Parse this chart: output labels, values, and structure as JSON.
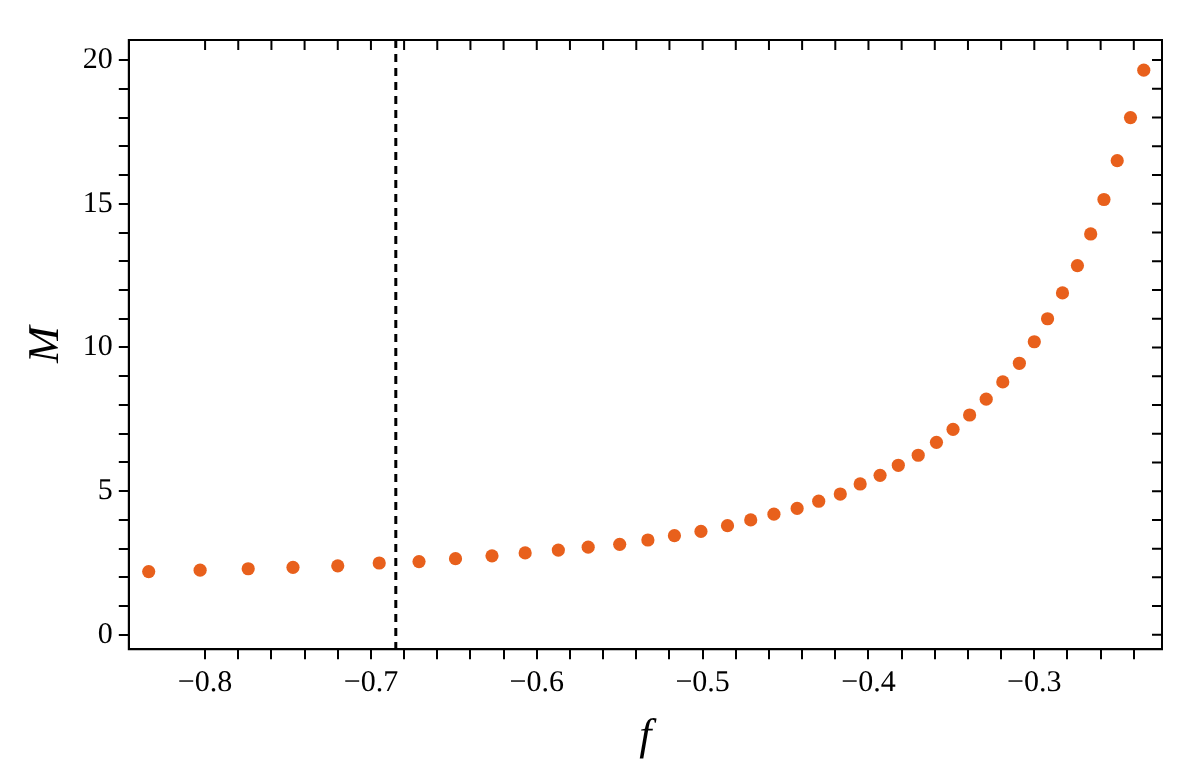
{
  "chart_data": {
    "type": "scatter",
    "xlabel": "f",
    "ylabel": "M",
    "marker": "circle",
    "grid": false,
    "legend": false,
    "xlim": [
      -0.846,
      -0.223
    ],
    "ylim": [
      -0.5,
      20.7
    ],
    "xticks": [
      -0.8,
      {
        "value": -0.78,
        "label": null
      },
      {
        "value": -0.76,
        "label": null
      },
      {
        "value": -0.74,
        "label": null
      },
      {
        "value": -0.72,
        "label": null
      },
      -0.7,
      {
        "value": -0.68,
        "label": null
      },
      {
        "value": -0.66,
        "label": null
      },
      {
        "value": -0.64,
        "label": null
      },
      {
        "value": -0.62,
        "label": null
      },
      -0.6,
      {
        "value": -0.58,
        "label": null
      },
      {
        "value": -0.56,
        "label": null
      },
      {
        "value": -0.54,
        "label": null
      },
      {
        "value": -0.52,
        "label": null
      },
      -0.5,
      {
        "value": -0.48,
        "label": null
      },
      {
        "value": -0.46,
        "label": null
      },
      {
        "value": -0.44,
        "label": null
      },
      {
        "value": -0.42,
        "label": null
      },
      -0.4,
      {
        "value": -0.38,
        "label": null
      },
      {
        "value": -0.36,
        "label": null
      },
      {
        "value": -0.34,
        "label": null
      },
      {
        "value": -0.32,
        "label": null
      },
      -0.3,
      {
        "value": -0.28,
        "label": null
      },
      {
        "value": -0.26,
        "label": null
      },
      {
        "value": -0.24,
        "label": null
      }
    ],
    "yticks": [
      0,
      {
        "value": 1,
        "label": null
      },
      {
        "value": 2,
        "label": null
      },
      {
        "value": 3,
        "label": null
      },
      {
        "value": 4,
        "label": null
      },
      5,
      {
        "value": 6,
        "label": null
      },
      {
        "value": 7,
        "label": null
      },
      {
        "value": 8,
        "label": null
      },
      {
        "value": 9,
        "label": null
      },
      10,
      {
        "value": 11,
        "label": null
      },
      {
        "value": 12,
        "label": null
      },
      {
        "value": 13,
        "label": null
      },
      {
        "value": 14,
        "label": null
      },
      15,
      {
        "value": 16,
        "label": null
      },
      {
        "value": 17,
        "label": null
      },
      {
        "value": 18,
        "label": null
      },
      {
        "value": 19,
        "label": null
      },
      20
    ],
    "ref_lines": [
      {
        "axis": "x",
        "value": -0.685,
        "color": "#000000",
        "line_style": "dashed"
      }
    ],
    "series": [
      {
        "color": "#e8601c",
        "x": [
          -0.834,
          -0.803,
          -0.774,
          -0.747,
          -0.72,
          -0.695,
          -0.671,
          -0.649,
          -0.627,
          -0.607,
          -0.587,
          -0.569,
          -0.55,
          -0.533,
          -0.517,
          -0.501,
          -0.485,
          -0.471,
          -0.457,
          -0.443,
          -0.43,
          -0.417,
          -0.405,
          -0.393,
          -0.382,
          -0.37,
          -0.359,
          -0.349,
          -0.339,
          -0.329,
          -0.319,
          -0.309,
          -0.3,
          -0.292,
          -0.283,
          -0.274,
          -0.266,
          -0.258,
          -0.25,
          -0.242,
          -0.234
        ],
        "values": [
          2.2,
          2.25,
          2.3,
          2.35,
          2.4,
          2.5,
          2.55,
          2.65,
          2.75,
          2.85,
          2.95,
          3.05,
          3.15,
          3.3,
          3.45,
          3.6,
          3.8,
          4.0,
          4.2,
          4.4,
          4.65,
          4.9,
          5.25,
          5.55,
          5.9,
          6.25,
          6.7,
          7.15,
          7.65,
          8.2,
          8.8,
          9.45,
          10.2,
          11.0,
          11.9,
          12.85,
          13.95,
          15.15,
          16.5,
          18.0,
          19.65
        ]
      }
    ]
  }
}
